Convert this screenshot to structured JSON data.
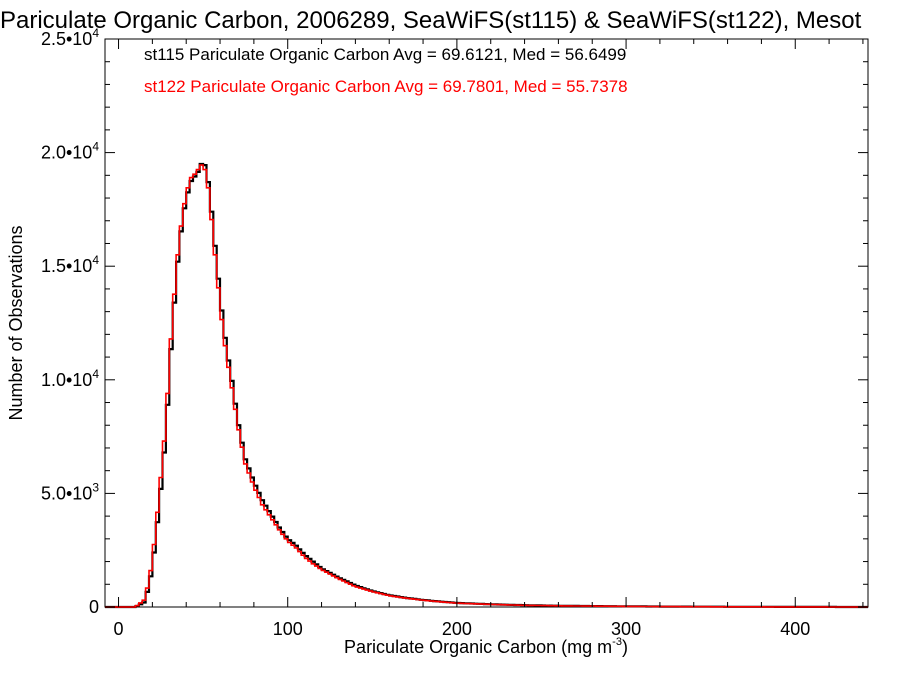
{
  "chart_data": {
    "type": "line",
    "title": "Pariculate Organic Carbon, 2006289, SeaWiFS(st115) & SeaWiFS(st122), Mesot",
    "xlabel": "Pariculate Organic Carbon (mg m",
    "xlabel_exponent": "-3",
    "xlabel_suffix": ")",
    "ylabel": "Number of Observations",
    "xlim": [
      -8,
      443
    ],
    "ylim": [
      0,
      25000
    ],
    "x_ticks": [
      0,
      100,
      200,
      300,
      400
    ],
    "x_tick_labels": [
      "0",
      "100",
      "200",
      "300",
      "400"
    ],
    "y_ticks": [
      0,
      5000,
      10000,
      15000,
      20000,
      25000
    ],
    "y_tick_labels": [
      {
        "base": "0",
        "exp": ""
      },
      {
        "base": "5.0•10",
        "exp": "3"
      },
      {
        "base": "1.0•10",
        "exp": "4"
      },
      {
        "base": "1.5•10",
        "exp": "4"
      },
      {
        "base": "2.0•10",
        "exp": "4"
      },
      {
        "base": "2.5•10",
        "exp": "4"
      }
    ],
    "grid": false,
    "legend_position": "top-left",
    "series": [
      {
        "name": "st115",
        "legend_text": "st115 Pariculate Organic Carbon Avg = 69.6121, Med = 56.6499",
        "color": "#000000",
        "x": [
          -8,
          0,
          10,
          15,
          18,
          20,
          22,
          25,
          28,
          30,
          32,
          35,
          38,
          40,
          42,
          44,
          46,
          48,
          50,
          52,
          54,
          56,
          58,
          60,
          62,
          64,
          66,
          68,
          70,
          72,
          75,
          78,
          80,
          85,
          90,
          95,
          100,
          105,
          110,
          115,
          120,
          130,
          140,
          150,
          160,
          170,
          180,
          190,
          200,
          220,
          240,
          260,
          280,
          300,
          320,
          350,
          400,
          443
        ],
        "y": [
          0,
          0,
          0,
          200,
          900,
          1800,
          3000,
          5200,
          7600,
          10200,
          12500,
          15200,
          17200,
          17900,
          18600,
          18900,
          19000,
          19300,
          19700,
          19200,
          18200,
          16600,
          15200,
          13700,
          12400,
          11300,
          10400,
          9500,
          8400,
          7600,
          6500,
          5900,
          5500,
          4700,
          4100,
          3500,
          3000,
          2700,
          2300,
          2000,
          1700,
          1300,
          950,
          700,
          520,
          400,
          310,
          240,
          180,
          120,
          80,
          55,
          40,
          30,
          20,
          12,
          5,
          0
        ]
      },
      {
        "name": "st122",
        "legend_text": "st122 Pariculate Organic Carbon Avg = 69.7801, Med = 55.7378",
        "color": "#ff0000",
        "x": [
          -8,
          0,
          10,
          15,
          18,
          20,
          22,
          25,
          28,
          30,
          32,
          35,
          38,
          40,
          42,
          44,
          46,
          48,
          50,
          52,
          54,
          56,
          58,
          60,
          62,
          64,
          66,
          68,
          70,
          72,
          75,
          78,
          80,
          85,
          90,
          95,
          100,
          105,
          110,
          115,
          120,
          130,
          140,
          150,
          160,
          170,
          180,
          190,
          200,
          220,
          240,
          260,
          280,
          300,
          320,
          350,
          400,
          443
        ],
        "y": [
          0,
          0,
          0,
          300,
          1100,
          2100,
          3400,
          5700,
          8100,
          10700,
          12900,
          15500,
          17400,
          18100,
          18800,
          19000,
          19100,
          19400,
          19500,
          19000,
          17900,
          16200,
          14800,
          13300,
          12000,
          11000,
          10100,
          9200,
          8200,
          7400,
          6300,
          5700,
          5300,
          4500,
          3950,
          3400,
          2900,
          2600,
          2200,
          1900,
          1650,
          1250,
          900,
          680,
          500,
          390,
          300,
          230,
          170,
          115,
          75,
          52,
          38,
          28,
          18,
          11,
          4,
          0
        ]
      }
    ]
  }
}
